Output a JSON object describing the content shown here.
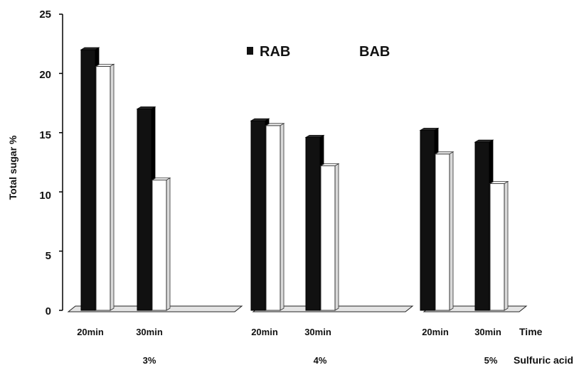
{
  "chart_data": {
    "type": "bar",
    "title": "",
    "ylabel": "Total sugar %",
    "ylim": [
      0,
      25
    ],
    "yticks": [
      "0",
      "5",
      "10",
      "15",
      "20",
      "25"
    ],
    "categories": [
      "20min",
      "30min",
      "20min",
      "30min",
      "20min",
      "30min"
    ],
    "group_labels": [
      "3%",
      "4%",
      "5%"
    ],
    "x_axis_labels": {
      "time": "Time",
      "acid": "Sulfuric acid"
    },
    "series": [
      {
        "name": "RAB",
        "color": "#111111",
        "values": [
          22.0,
          17.0,
          16.0,
          14.6,
          15.2,
          14.2
        ]
      },
      {
        "name": "BAB",
        "color": "#ffffff",
        "values": [
          20.6,
          11.0,
          15.6,
          12.2,
          13.2,
          10.7
        ]
      }
    ],
    "legend": "top-center",
    "grid": false
  }
}
